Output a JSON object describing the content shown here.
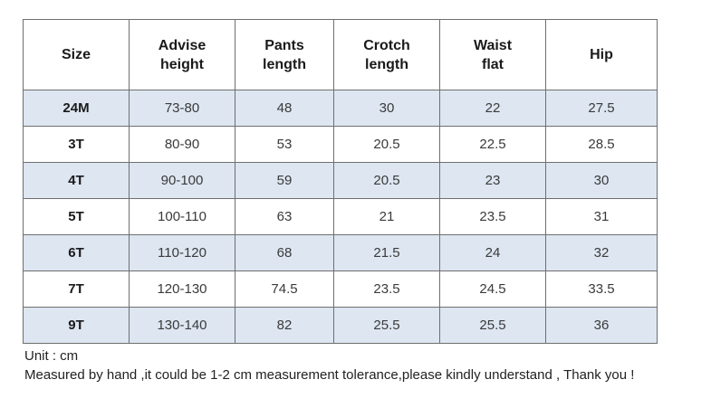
{
  "table": {
    "headers": [
      "Size",
      "Advise\nheight",
      "Pants\nlength",
      "Crotch\nlength",
      "Waist\nflat",
      "Hip"
    ],
    "rows": [
      [
        "24M",
        "73-80",
        "48",
        "30",
        "22",
        "27.5"
      ],
      [
        "3T",
        "80-90",
        "53",
        "20.5",
        "22.5",
        "28.5"
      ],
      [
        "4T",
        "90-100",
        "59",
        "20.5",
        "23",
        "30"
      ],
      [
        "5T",
        "100-110",
        "63",
        "21",
        "23.5",
        "31"
      ],
      [
        "6T",
        "110-120",
        "68",
        "21.5",
        "24",
        "32"
      ],
      [
        "7T",
        "120-130",
        "74.5",
        "23.5",
        "24.5",
        "33.5"
      ],
      [
        "9T",
        "130-140",
        "82",
        "25.5",
        "25.5",
        "36"
      ]
    ]
  },
  "notes": {
    "unit": "Unit : cm",
    "tolerance": "Measured by hand ,it could be 1-2 cm measurement tolerance,please kindly understand , Thank you !"
  },
  "colors": {
    "shaded_row": "#dde6f1",
    "border": "#6f6f6f"
  }
}
